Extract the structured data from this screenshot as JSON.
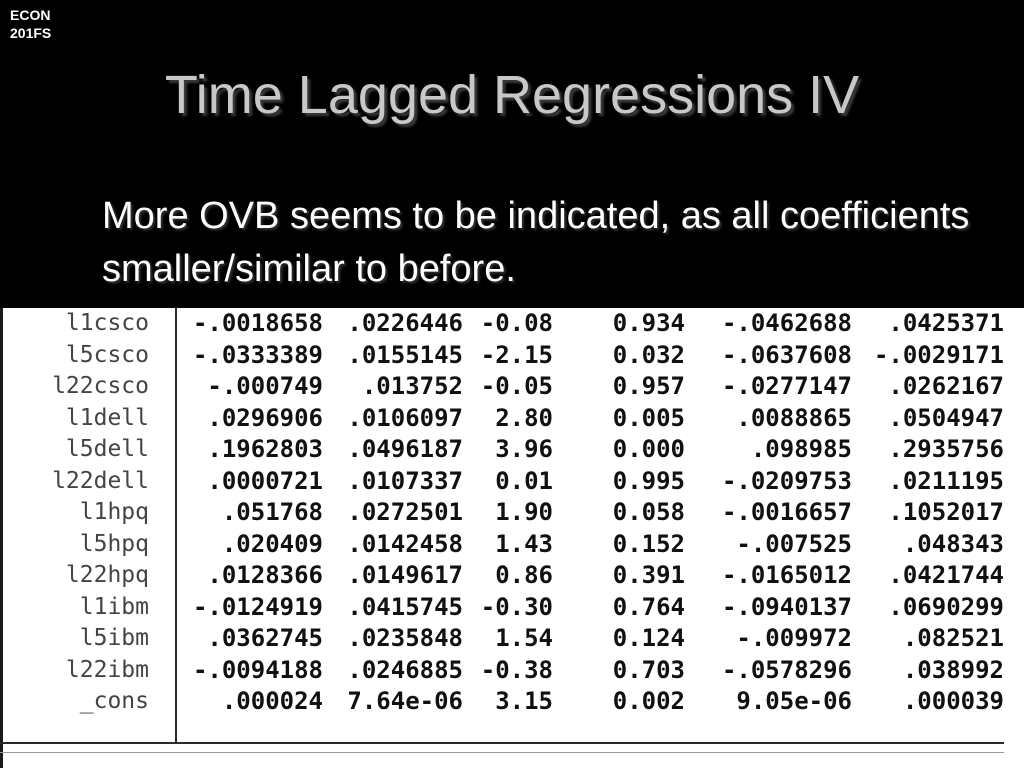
{
  "course_tag": [
    "ECON",
    "201FS"
  ],
  "title": "Time Lagged Regressions IV",
  "bullet": "More OVB seems to be indicated, as all coefficients smaller/similar to before.",
  "colors": {
    "background": "#000000",
    "title_text": "#c8c8c8",
    "body_text": "#ffffff",
    "table_background": "#ffffff"
  },
  "regression_rows": [
    {
      "var": "l1csco",
      "coef": "-.0018658",
      "se": ".0226446",
      "t": "-0.08",
      "p": "0.934",
      "ci_low": "-.0462688",
      "ci_high": ".0425371"
    },
    {
      "var": "l5csco",
      "coef": "-.0333389",
      "se": ".0155145",
      "t": "-2.15",
      "p": "0.032",
      "ci_low": "-.0637608",
      "ci_high": "-.0029171"
    },
    {
      "var": "l22csco",
      "coef": "-.000749",
      "se": ".013752",
      "t": "-0.05",
      "p": "0.957",
      "ci_low": "-.0277147",
      "ci_high": ".0262167"
    },
    {
      "var": "l1dell",
      "coef": ".0296906",
      "se": ".0106097",
      "t": "2.80",
      "p": "0.005",
      "ci_low": ".0088865",
      "ci_high": ".0504947"
    },
    {
      "var": "l5dell",
      "coef": ".1962803",
      "se": ".0496187",
      "t": "3.96",
      "p": "0.000",
      "ci_low": ".098985",
      "ci_high": ".2935756"
    },
    {
      "var": "l22dell",
      "coef": ".0000721",
      "se": ".0107337",
      "t": "0.01",
      "p": "0.995",
      "ci_low": "-.0209753",
      "ci_high": ".0211195"
    },
    {
      "var": "l1hpq",
      "coef": ".051768",
      "se": ".0272501",
      "t": "1.90",
      "p": "0.058",
      "ci_low": "-.0016657",
      "ci_high": ".1052017"
    },
    {
      "var": "l5hpq",
      "coef": ".020409",
      "se": ".0142458",
      "t": "1.43",
      "p": "0.152",
      "ci_low": "-.007525",
      "ci_high": ".048343"
    },
    {
      "var": "l22hpq",
      "coef": ".0128366",
      "se": ".0149617",
      "t": "0.86",
      "p": "0.391",
      "ci_low": "-.0165012",
      "ci_high": ".0421744"
    },
    {
      "var": "l1ibm",
      "coef": "-.0124919",
      "se": ".0415745",
      "t": "-0.30",
      "p": "0.764",
      "ci_low": "-.0940137",
      "ci_high": ".0690299"
    },
    {
      "var": "l5ibm",
      "coef": ".0362745",
      "se": ".0235848",
      "t": "1.54",
      "p": "0.124",
      "ci_low": "-.009972",
      "ci_high": ".082521"
    },
    {
      "var": "l22ibm",
      "coef": "-.0094188",
      "se": ".0246885",
      "t": "-0.38",
      "p": "0.703",
      "ci_low": "-.0578296",
      "ci_high": ".038992"
    },
    {
      "var": "_cons",
      "coef": ".000024",
      "se": "7.64e-06",
      "t": "3.15",
      "p": "0.002",
      "ci_low": "9.05e-06",
      "ci_high": ".000039"
    }
  ]
}
